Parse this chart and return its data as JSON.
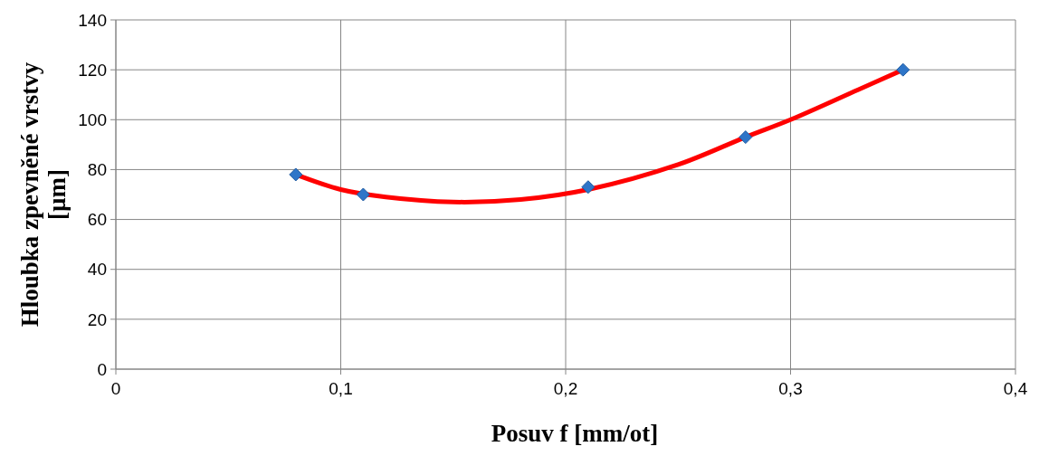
{
  "chart_data": {
    "type": "scatter",
    "xlabel": "Posuv f [mm/ot]",
    "ylabel": "Hloubka zpevněné vrstvy [µm]",
    "xlim": [
      0,
      0.4
    ],
    "xticks": [
      0,
      {
        "value": 0.1,
        "label": "0,1"
      },
      {
        "value": 0.2,
        "label": "0,2"
      },
      {
        "value": 0.3,
        "label": "0,3"
      },
      {
        "value": 0.4,
        "label": "0,4"
      }
    ],
    "ylim": [
      0,
      140
    ],
    "yticks": [
      0,
      20,
      40,
      60,
      80,
      100,
      120,
      140
    ],
    "grid": true,
    "series": [
      {
        "color": "#2e75c8",
        "marker": "diamond",
        "x": [
          0.08,
          0.11,
          0.21,
          0.28,
          0.35
        ],
        "values": [
          78,
          70,
          73,
          93,
          120
        ]
      },
      {
        "type": "line",
        "color": "#ff0000",
        "marker": "none",
        "x": [
          0.08,
          0.1,
          0.12,
          0.15,
          0.18,
          0.21,
          0.25,
          0.28,
          0.3,
          0.33,
          0.35
        ],
        "values": [
          78,
          72,
          69,
          67,
          68,
          72,
          82,
          93,
          100,
          112,
          120
        ]
      }
    ]
  }
}
